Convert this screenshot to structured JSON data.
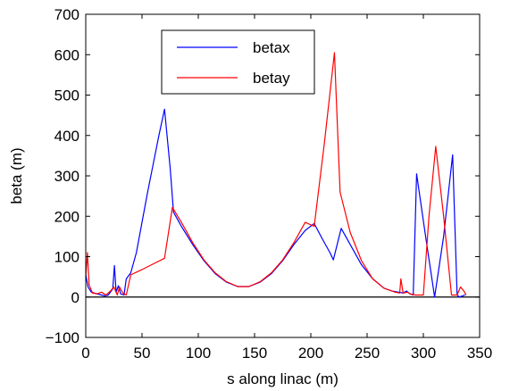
{
  "chart_data": {
    "type": "line",
    "title": "",
    "xlabel": "s along linac (m)",
    "ylabel": "beta (m)",
    "xlim": [
      0,
      350
    ],
    "ylim": [
      -100,
      700
    ],
    "xticks": [
      0,
      50,
      100,
      150,
      200,
      250,
      300,
      350
    ],
    "yticks": [
      -100,
      0,
      100,
      200,
      300,
      400,
      500,
      600,
      700
    ],
    "xtick_labels": [
      "0",
      "50",
      "100",
      "150",
      "200",
      "250",
      "300",
      "350"
    ],
    "ytick_labels": [
      "−100",
      "0",
      "100",
      "200",
      "300",
      "400",
      "500",
      "600",
      "700"
    ],
    "grid": false,
    "legend_placement": "top-center",
    "series": [
      {
        "name": "betax",
        "color": "#0000ff",
        "x": [
          0,
          2,
          5,
          10,
          14,
          17,
          20,
          24,
          25.5,
          27,
          29,
          31,
          34,
          36,
          40,
          45,
          50,
          55,
          60,
          65,
          70,
          75,
          78,
          85,
          95,
          105,
          115,
          125,
          135,
          145,
          155,
          165,
          175,
          185,
          195,
          203,
          210,
          217,
          220,
          227,
          235,
          245,
          255,
          265,
          272,
          278,
          282,
          285,
          288,
          291,
          294,
          302,
          310,
          318,
          326,
          330,
          332,
          334,
          337
        ],
        "y": [
          55,
          25,
          12,
          8,
          5,
          3,
          5,
          20,
          78,
          12,
          28,
          8,
          5,
          45,
          60,
          110,
          185,
          260,
          330,
          400,
          465,
          320,
          210,
          175,
          130,
          90,
          58,
          37,
          26,
          26,
          37,
          58,
          90,
          130,
          165,
          182,
          145,
          110,
          92,
          170,
          130,
          80,
          45,
          22,
          15,
          12,
          10,
          15,
          8,
          5,
          305,
          150,
          0,
          150,
          352,
          5,
          0,
          2,
          5
        ]
      },
      {
        "name": "betay",
        "color": "#ff0000",
        "x": [
          0,
          1.5,
          3,
          6,
          10,
          14,
          18,
          22,
          25,
          28,
          30,
          33,
          36,
          40,
          50,
          60,
          70,
          77,
          85,
          95,
          105,
          115,
          125,
          135,
          145,
          155,
          165,
          175,
          185,
          195,
          203,
          212,
          221,
          226,
          235,
          245,
          255,
          265,
          275,
          279,
          280,
          282,
          286,
          288,
          293,
          300,
          305,
          311,
          318,
          325,
          330,
          333,
          336,
          338
        ],
        "y": [
          50,
          110,
          30,
          10,
          8,
          12,
          5,
          15,
          25,
          5,
          25,
          10,
          5,
          55,
          68,
          82,
          96,
          222,
          185,
          135,
          92,
          60,
          38,
          26,
          26,
          38,
          60,
          92,
          135,
          185,
          175,
          380,
          605,
          260,
          160,
          90,
          45,
          22,
          12,
          10,
          45,
          10,
          12,
          8,
          5,
          5,
          200,
          373,
          200,
          5,
          5,
          25,
          15,
          5
        ]
      }
    ]
  }
}
